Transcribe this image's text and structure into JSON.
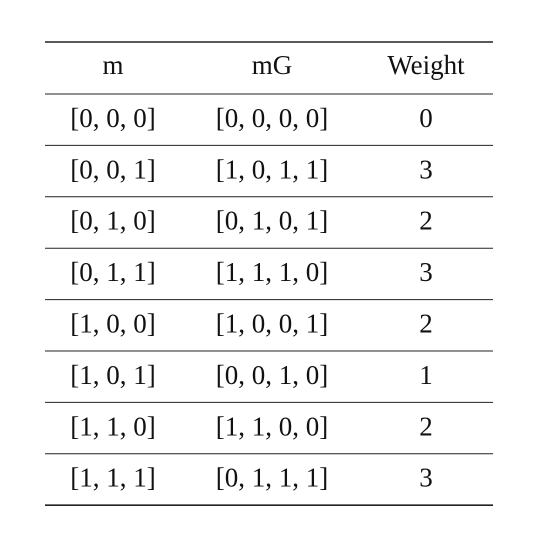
{
  "table": {
    "header": [
      "m",
      "mG",
      "Weight"
    ],
    "rows": [
      [
        "[0, 0, 0]",
        "[0, 0, 0, 0]",
        0
      ],
      [
        "[0, 0, 1]",
        "[1, 0, 1, 1]",
        3
      ],
      [
        "[0, 1, 0]",
        "[0, 1, 0, 1]",
        2
      ],
      [
        "[0, 1, 1]",
        "[1, 1, 1, 0]",
        3
      ],
      [
        "[1, 0, 0]",
        "[1, 0, 0, 1]",
        2
      ],
      [
        "[1, 0, 1]",
        "[0, 0, 1, 0]",
        1
      ],
      [
        "[1, 1, 0]",
        "[1, 1, 0, 0]",
        2
      ],
      [
        "[1, 1, 1]",
        "[0, 1, 1, 1]",
        3
      ]
    ]
  }
}
